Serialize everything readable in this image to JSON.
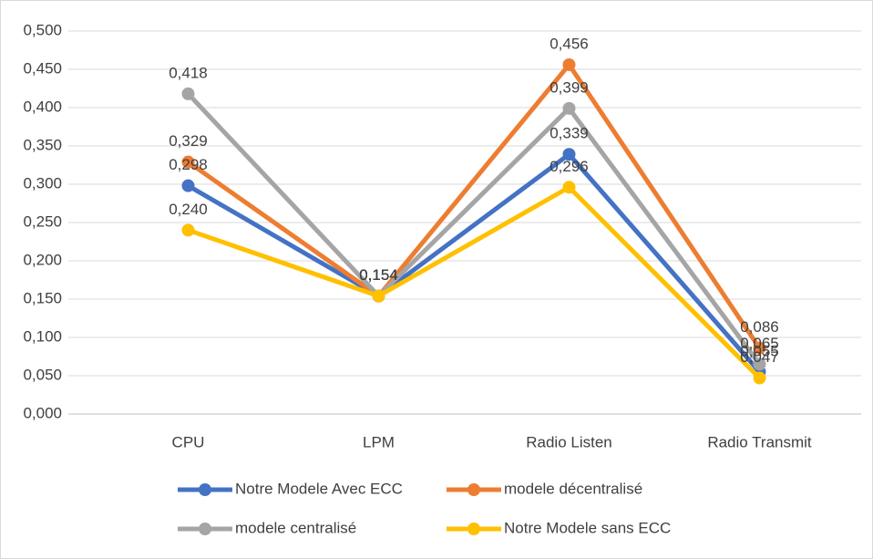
{
  "chart_data": {
    "type": "line",
    "categories": [
      "CPU",
      "LPM",
      "Radio Listen",
      "Radio Transmit"
    ],
    "series": [
      {
        "name": "Notre Modele Avec ECC",
        "color": "#4472c4",
        "values": [
          0.298,
          0.154,
          0.339,
          0.055
        ],
        "value_labels": [
          "0,298",
          "0,154",
          "0,339",
          "0,055"
        ]
      },
      {
        "name": "modele décentralisé",
        "color": "#ed7d31",
        "values": [
          0.329,
          0.154,
          0.456,
          0.086
        ],
        "value_labels": [
          "0,329",
          "0,154",
          "0,456",
          "0,086"
        ]
      },
      {
        "name": "modele centralisé",
        "color": "#a5a5a5",
        "values": [
          0.418,
          0.154,
          0.399,
          0.065
        ],
        "value_labels": [
          "0,418",
          "0,154",
          "0,399",
          "0,065"
        ]
      },
      {
        "name": "Notre Modele sans ECC",
        "color": "#ffc000",
        "values": [
          0.24,
          0.154,
          0.296,
          0.047
        ],
        "value_labels": [
          "0,240",
          "0,154",
          "0,296",
          "0,047"
        ]
      }
    ],
    "ylim": [
      0,
      0.5
    ],
    "yticks": [
      {
        "value": 0,
        "label": "0,000"
      },
      {
        "value": 0.05,
        "label": "0,050"
      },
      {
        "value": 0.1,
        "label": "0,100"
      },
      {
        "value": 0.15,
        "label": "0,150"
      },
      {
        "value": 0.2,
        "label": "0,200"
      },
      {
        "value": 0.25,
        "label": "0,250"
      },
      {
        "value": 0.3,
        "label": "0,300"
      },
      {
        "value": 0.35,
        "label": "0,350"
      },
      {
        "value": 0.4,
        "label": "0,400"
      },
      {
        "value": 0.45,
        "label": "0,450"
      },
      {
        "value": 0.5,
        "label": "0,500"
      }
    ],
    "grid": true,
    "legend": "bottom"
  }
}
